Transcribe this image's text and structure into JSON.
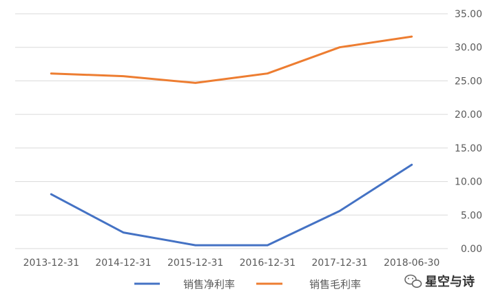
{
  "chart_data": {
    "type": "line",
    "title": "",
    "xlabel": "",
    "ylabel": "",
    "categories": [
      "2013-12-31",
      "2014-12-31",
      "2015-12-31",
      "2016-12-31",
      "2017-12-31",
      "2018-06-30"
    ],
    "series": [
      {
        "name": "销售净利率",
        "color": "#4472c4",
        "values": [
          8.1,
          2.4,
          0.5,
          0.5,
          5.6,
          12.5
        ]
      },
      {
        "name": "销售毛利率",
        "color": "#ed7d31",
        "values": [
          26.1,
          25.7,
          24.7,
          26.1,
          30.0,
          31.6
        ]
      }
    ],
    "ylim": [
      0,
      35
    ],
    "yticks": [
      "0.00",
      "5.00",
      "10.00",
      "15.00",
      "20.00",
      "25.00",
      "30.00",
      "35.00"
    ],
    "y_axis_position": "right",
    "grid": true,
    "legend_position": "bottom"
  },
  "watermark": {
    "text": "星空与诗",
    "icon": "wechat-icon"
  },
  "colors": {
    "grid": "#d9d9d9",
    "tick_text": "#595959"
  }
}
